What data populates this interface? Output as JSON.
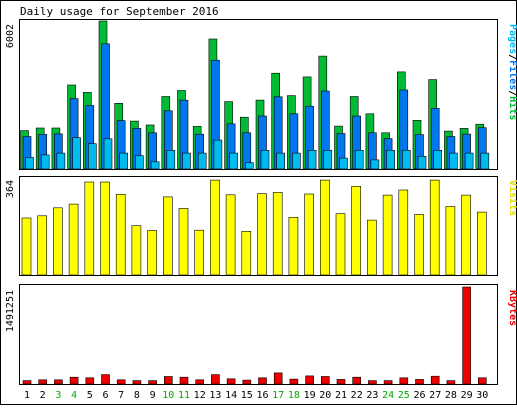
{
  "chart_data": [
    {
      "type": "bar",
      "title": "Daily usage for September 2016",
      "categories": [
        "1",
        "2",
        "3",
        "4",
        "5",
        "6",
        "7",
        "8",
        "9",
        "10",
        "11",
        "12",
        "13",
        "14",
        "15",
        "16",
        "17",
        "18",
        "19",
        "20",
        "21",
        "22",
        "23",
        "24",
        "25",
        "26",
        "27",
        "28",
        "29",
        "30"
      ],
      "weekend_days": [
        "3",
        "4",
        "10",
        "11",
        "17",
        "18",
        "24",
        "25"
      ],
      "ylabel": "Pages/Files/Hits",
      "ylim": [
        0,
        6002
      ],
      "tick_labels": [
        "6002"
      ],
      "series": [
        {
          "name": "Hits",
          "color": "#00bb33",
          "values": [
            1556,
            1664,
            1664,
            3408,
            3106,
            6002,
            2665,
            1941,
            1783,
            2940,
            3183,
            1726,
            5271,
            2732,
            2100,
            2793,
            3885,
            2978,
            3734,
            4580,
            1741,
            2940,
            2238,
            1468,
            3938,
            1975,
            3624,
            1537,
            1647,
            1815
          ]
        },
        {
          "name": "Files",
          "color": "#0077ee",
          "values": [
            1318,
            1403,
            1424,
            2854,
            2574,
            5079,
            1962,
            1647,
            1468,
            2359,
            2789,
            1412,
            4414,
            1832,
            1468,
            2148,
            2930,
            2238,
            2547,
            3164,
            1439,
            2148,
            1468,
            1231,
            3204,
            1394,
            2462,
            1316,
            1416,
            1675
          ]
        },
        {
          "name": "Pages",
          "color": "#00bbee",
          "values": [
            470,
            571,
            645,
            1268,
            1028,
            1224,
            645,
            542,
            290,
            760,
            645,
            645,
            1172,
            645,
            260,
            760,
            645,
            645,
            760,
            760,
            443,
            760,
            369,
            760,
            760,
            516,
            760,
            645,
            645,
            645
          ]
        }
      ]
    },
    {
      "type": "bar",
      "ylabel": "Visits",
      "ylim": [
        0,
        364
      ],
      "tick_labels": [
        "364"
      ],
      "series": [
        {
          "name": "Visits",
          "color": "#ffff00",
          "values": [
            214,
            222,
            252,
            266,
            349,
            349,
            303,
            185,
            167,
            293,
            250,
            168,
            356,
            301,
            164,
            305,
            310,
            216,
            304,
            356,
            230,
            333,
            206,
            300,
            319,
            227,
            356,
            257,
            300,
            236
          ]
        }
      ]
    },
    {
      "type": "bar",
      "ylabel": "KBytes",
      "ylim": [
        0,
        1491251
      ],
      "tick_labels": [
        "1491251"
      ],
      "series": [
        {
          "name": "KBytes",
          "color": "#ee0000",
          "values": [
            52000,
            65000,
            65000,
            105000,
            95000,
            145000,
            65000,
            52000,
            52000,
            115000,
            105000,
            65000,
            145000,
            80000,
            60000,
            95000,
            170000,
            75000,
            125000,
            115000,
            70000,
            105000,
            52000,
            52000,
            95000,
            70000,
            120000,
            52000,
            1491251,
            95000
          ]
        }
      ]
    }
  ]
}
